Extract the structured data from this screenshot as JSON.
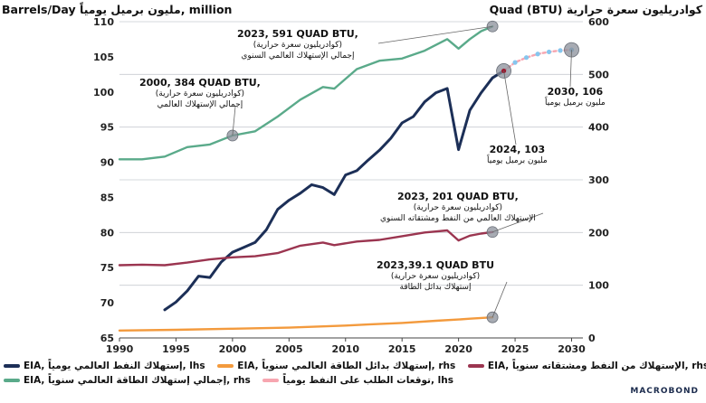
{
  "header": {
    "left_title": "Barrels/Day مليون برميل يومياً, million",
    "right_title": "Quad (BTU) كوادريليون سعرة حرارية"
  },
  "chart_data": {
    "type": "line",
    "x_axis": {
      "ticks": [
        1990,
        1995,
        2000,
        2005,
        2010,
        2015,
        2020,
        2025,
        2030
      ],
      "range": [
        1990,
        2031
      ]
    },
    "y_left": {
      "ticks": [
        65,
        70,
        75,
        80,
        85,
        90,
        95,
        100,
        105,
        110
      ],
      "range": [
        65,
        110
      ]
    },
    "y_right": {
      "ticks": [
        0,
        100,
        200,
        300,
        400,
        500,
        600
      ],
      "range": [
        0,
        600
      ]
    },
    "grid": "horizontal",
    "colors": {
      "oil": "#1c2f57",
      "alternatives": "#f39a3d",
      "oil_gas": "#9b3550",
      "total": "#5aaa8a",
      "forecast": "#f7a6b0",
      "forecast_marker": "#86c6ee",
      "highlight": "#8a8f99"
    },
    "series": [
      {
        "key": "oil",
        "axis": "left",
        "x": [
          1994,
          1995,
          1996,
          1997,
          1998,
          1999,
          2000,
          2001,
          2002,
          2003,
          2004,
          2005,
          2006,
          2007,
          2008,
          2009,
          2010,
          2011,
          2012,
          2013,
          2014,
          2015,
          2016,
          2017,
          2018,
          2019,
          2020,
          2021,
          2022,
          2023,
          2024
        ],
        "values": [
          69,
          70.1,
          71.7,
          73.8,
          73.6,
          75.8,
          77.2,
          77.9,
          78.6,
          80.4,
          83.3,
          84.6,
          85.6,
          86.8,
          86.4,
          85.4,
          88.2,
          88.8,
          90.3,
          91.7,
          93.4,
          95.6,
          96.5,
          98.6,
          99.9,
          100.5,
          91.8,
          97.4,
          99.9,
          102.0,
          103.0
        ]
      },
      {
        "key": "alternatives",
        "axis": "right",
        "x": [
          1990,
          1995,
          2000,
          2005,
          2010,
          2012,
          2015,
          2018,
          2020,
          2021,
          2022,
          2023
        ],
        "values": [
          14.0,
          15.5,
          17.5,
          19.5,
          23.5,
          25.5,
          28.5,
          32.5,
          35.0,
          36.5,
          37.8,
          39.1
        ]
      },
      {
        "key": "oil_gas",
        "axis": "right",
        "x": [
          1990,
          1992,
          1994,
          1996,
          1998,
          2000,
          2002,
          2004,
          2006,
          2008,
          2009,
          2011,
          2013,
          2015,
          2017,
          2019,
          2020,
          2021,
          2022,
          2023
        ],
        "values": [
          138,
          139,
          138,
          143,
          149,
          153,
          155,
          161,
          175,
          181,
          176,
          183,
          186,
          193,
          200,
          204,
          185,
          194,
          198,
          201
        ]
      },
      {
        "key": "total",
        "axis": "right",
        "x": [
          1990,
          1992,
          1994,
          1996,
          1998,
          2000,
          2002,
          2004,
          2006,
          2008,
          2009,
          2011,
          2013,
          2015,
          2017,
          2019,
          2020,
          2021,
          2022,
          2023
        ],
        "values": [
          339,
          339,
          344,
          362,
          367,
          384,
          392,
          420,
          452,
          476,
          473,
          510,
          526,
          530,
          545,
          567,
          549,
          567,
          582,
          591
        ]
      },
      {
        "key": "forecast",
        "axis": "left",
        "x": [
          2024,
          2025,
          2026,
          2027,
          2028,
          2029,
          2030
        ],
        "values": [
          103.0,
          104.2,
          104.9,
          105.4,
          105.7,
          105.9,
          106.0
        ]
      }
    ],
    "highlights": [
      {
        "x": 2000,
        "y": 384,
        "axis": "right"
      },
      {
        "x": 2023,
        "y": 591,
        "axis": "right"
      },
      {
        "x": 2023,
        "y": 201,
        "axis": "right"
      },
      {
        "x": 2023,
        "y": 39.1,
        "axis": "right"
      },
      {
        "x": 2024,
        "y": 103,
        "axis": "left"
      },
      {
        "x": 2030,
        "y": 106,
        "axis": "left"
      }
    ],
    "annotations": [
      {
        "key": "a2000",
        "line1": "2000, 384 QUAD BTU,",
        "line2": "(كوادريليون سعرة حرارية)",
        "line3": "إجمالي الإستهلاك العالمي"
      },
      {
        "key": "a2023total",
        "line1": "2023, 591 QUAD BTU,",
        "line2": "(كوادريليون سعرة حرارية)",
        "line3": "إجمالي الإستهلاك العالمي السنوي"
      },
      {
        "key": "a2023oilgas",
        "line1": "2023, 201 QUAD BTU,",
        "line2": "(كوادريليون سعرة حرارية)",
        "line3": "الإستهلاك العالمي من النفط ومشتقاته السنوي"
      },
      {
        "key": "a2023alt",
        "line1": "2023,39.1 QUAD BTU",
        "line2": "(كوادريليون سعرة حرارية)",
        "line3": "إستهلاك بدائل الطاقة"
      },
      {
        "key": "a2024",
        "line1": "2024, 103",
        "line2": "مليون برميل يومياً"
      },
      {
        "key": "a2030",
        "line1": "2030, 106",
        "line2": "مليون برميل يومياً"
      }
    ]
  },
  "legend": {
    "row1": [
      {
        "key": "oil",
        "label": "EIA, إستهلاك النفط العالمي يومياً, lhs"
      },
      {
        "key": "alternatives",
        "label": "EIA, إستهلاك بدائل الطاقة العالمي سنوياً, rhs"
      },
      {
        "key": "oil_gas",
        "label": "EIA, الإستهلاك من النفط ومشتقاته سنوياً, rhs"
      }
    ],
    "row2": [
      {
        "key": "total",
        "label": "EIA, إجمالي إستهلاك الطاقة العالمي سنوياً, rhs"
      },
      {
        "key": "forecast",
        "label": "توقعات الطلب على النفط يومياً, lhs"
      }
    ]
  },
  "brand": "MACROBOND"
}
